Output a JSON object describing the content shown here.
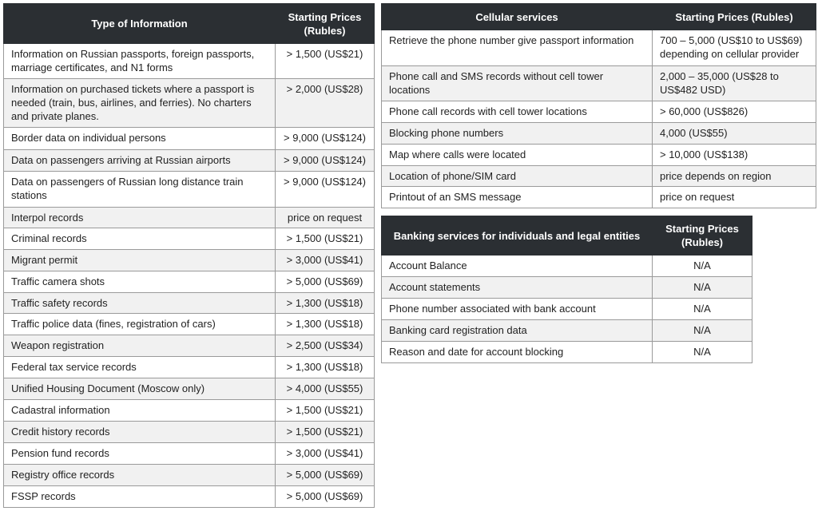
{
  "info_table": {
    "headers": [
      "Type of Information",
      "Starting Prices (Rubles)"
    ],
    "rows": [
      [
        "Information on Russian passports, foreign passports, marriage certificates, and N1 forms",
        "> 1,500 (US$21)"
      ],
      [
        "Information on purchased tickets where a passport is needed (train, bus, airlines, and ferries). No charters and private planes.",
        "> 2,000 (US$28)"
      ],
      [
        "Border data on individual persons",
        "> 9,000 (US$124)"
      ],
      [
        "Data on passengers arriving at Russian airports",
        "> 9,000 (US$124)"
      ],
      [
        "Data on passengers of Russian long distance train stations",
        "> 9,000 (US$124)"
      ],
      [
        "Interpol records",
        "price on request"
      ],
      [
        "Criminal records",
        "> 1,500 (US$21)"
      ],
      [
        "Migrant permit",
        "> 3,000 (US$41)"
      ],
      [
        "Traffic camera shots",
        "> 5,000 (US$69)"
      ],
      [
        "Traffic safety records",
        "> 1,300 (US$18)"
      ],
      [
        "Traffic police data (fines, registration of cars)",
        "> 1,300 (US$18)"
      ],
      [
        "Weapon registration",
        "> 2,500 (US$34)"
      ],
      [
        "Federal tax service records",
        "> 1,300 (US$18)"
      ],
      [
        "Unified Housing Document (Moscow only)",
        "> 4,000 (US$55)"
      ],
      [
        "Cadastral information",
        "> 1,500 (US$21)"
      ],
      [
        "Credit history records",
        "> 1,500 (US$21)"
      ],
      [
        "Pension fund records",
        "> 3,000 (US$41)"
      ],
      [
        "Registry office records",
        "> 5,000 (US$69)"
      ],
      [
        "FSSP records",
        "> 5,000 (US$69)"
      ]
    ]
  },
  "cellular_table": {
    "headers": [
      "Cellular services",
      "Starting Prices (Rubles)"
    ],
    "rows": [
      [
        "Retrieve the phone number give passport information",
        "700 – 5,000 (US$10 to US$69) depending on cellular provider"
      ],
      [
        "Phone call and SMS records without cell tower locations",
        "2,000 – 35,000 (US$28 to US$482 USD)"
      ],
      [
        "Phone call records with cell tower locations",
        "> 60,000 (US$826)"
      ],
      [
        "Blocking phone numbers",
        "4,000 (US$55)"
      ],
      [
        "Map where calls were located",
        "> 10,000 (US$138)"
      ],
      [
        "Location of phone/SIM card",
        "price depends on region"
      ],
      [
        "Printout of an SMS message",
        "price on request"
      ]
    ]
  },
  "banking_table": {
    "headers": [
      "Banking services for individuals and legal entities",
      "Starting Prices (Rubles)"
    ],
    "rows": [
      [
        "Account Balance",
        "N/A"
      ],
      [
        "Account statements",
        "N/A"
      ],
      [
        "Phone number associated with bank account",
        "N/A"
      ],
      [
        "Banking card registration data",
        "N/A"
      ],
      [
        "Reason and date for account blocking",
        "N/A"
      ]
    ]
  }
}
